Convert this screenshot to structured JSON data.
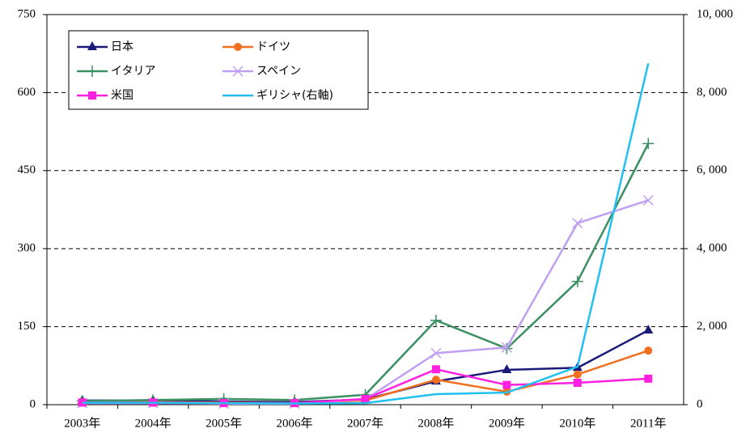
{
  "chart_data": {
    "type": "line",
    "categories": [
      "2003年",
      "2004年",
      "2005年",
      "2006年",
      "2007年",
      "2008年",
      "2009年",
      "2010年",
      "2011年"
    ],
    "ylim": [
      0,
      750
    ],
    "yticks": [
      0,
      150,
      300,
      450,
      600,
      750
    ],
    "y2lim": [
      0,
      10000
    ],
    "y2ticks": [
      0,
      {
        "value": 2000,
        "label": "2, 000"
      },
      {
        "value": 4000,
        "label": "4, 000"
      },
      {
        "value": 6000,
        "label": "6, 000"
      },
      {
        "value": 8000,
        "label": "8, 000"
      },
      {
        "value": 10000,
        "label": "10, 000"
      }
    ],
    "grid": true,
    "legend": "upper left",
    "series": [
      {
        "name": "日本",
        "color": "#1a1a78",
        "marker": "triangle",
        "values": [
          8,
          8,
          6,
          5,
          10,
          45,
          67,
          71,
          143
        ]
      },
      {
        "name": "ドイツ",
        "color": "#f07020",
        "marker": "circle",
        "values": [
          5,
          5,
          4,
          3,
          8,
          48,
          25,
          58,
          104
        ]
      },
      {
        "name": "イタリア",
        "color": "#3a9060",
        "marker": "plus",
        "values": [
          7,
          9,
          11,
          9,
          19,
          162,
          108,
          237,
          502
        ]
      },
      {
        "name": "スペイン",
        "color": "#c0a0f0",
        "marker": "x",
        "values": [
          3,
          3,
          2,
          2,
          10,
          99,
          110,
          349,
          393
        ]
      },
      {
        "name": "米国",
        "color": "#ff20e0",
        "marker": "square",
        "values": [
          4,
          4,
          3,
          3,
          11,
          68,
          38,
          42,
          50
        ]
      },
      {
        "name": "ギリシャ(右軸)",
        "color": "#20c0f0",
        "marker": "none",
        "axis": "y2",
        "values": [
          50,
          50,
          40,
          30,
          40,
          270,
          310,
          975,
          8750
        ]
      }
    ]
  }
}
